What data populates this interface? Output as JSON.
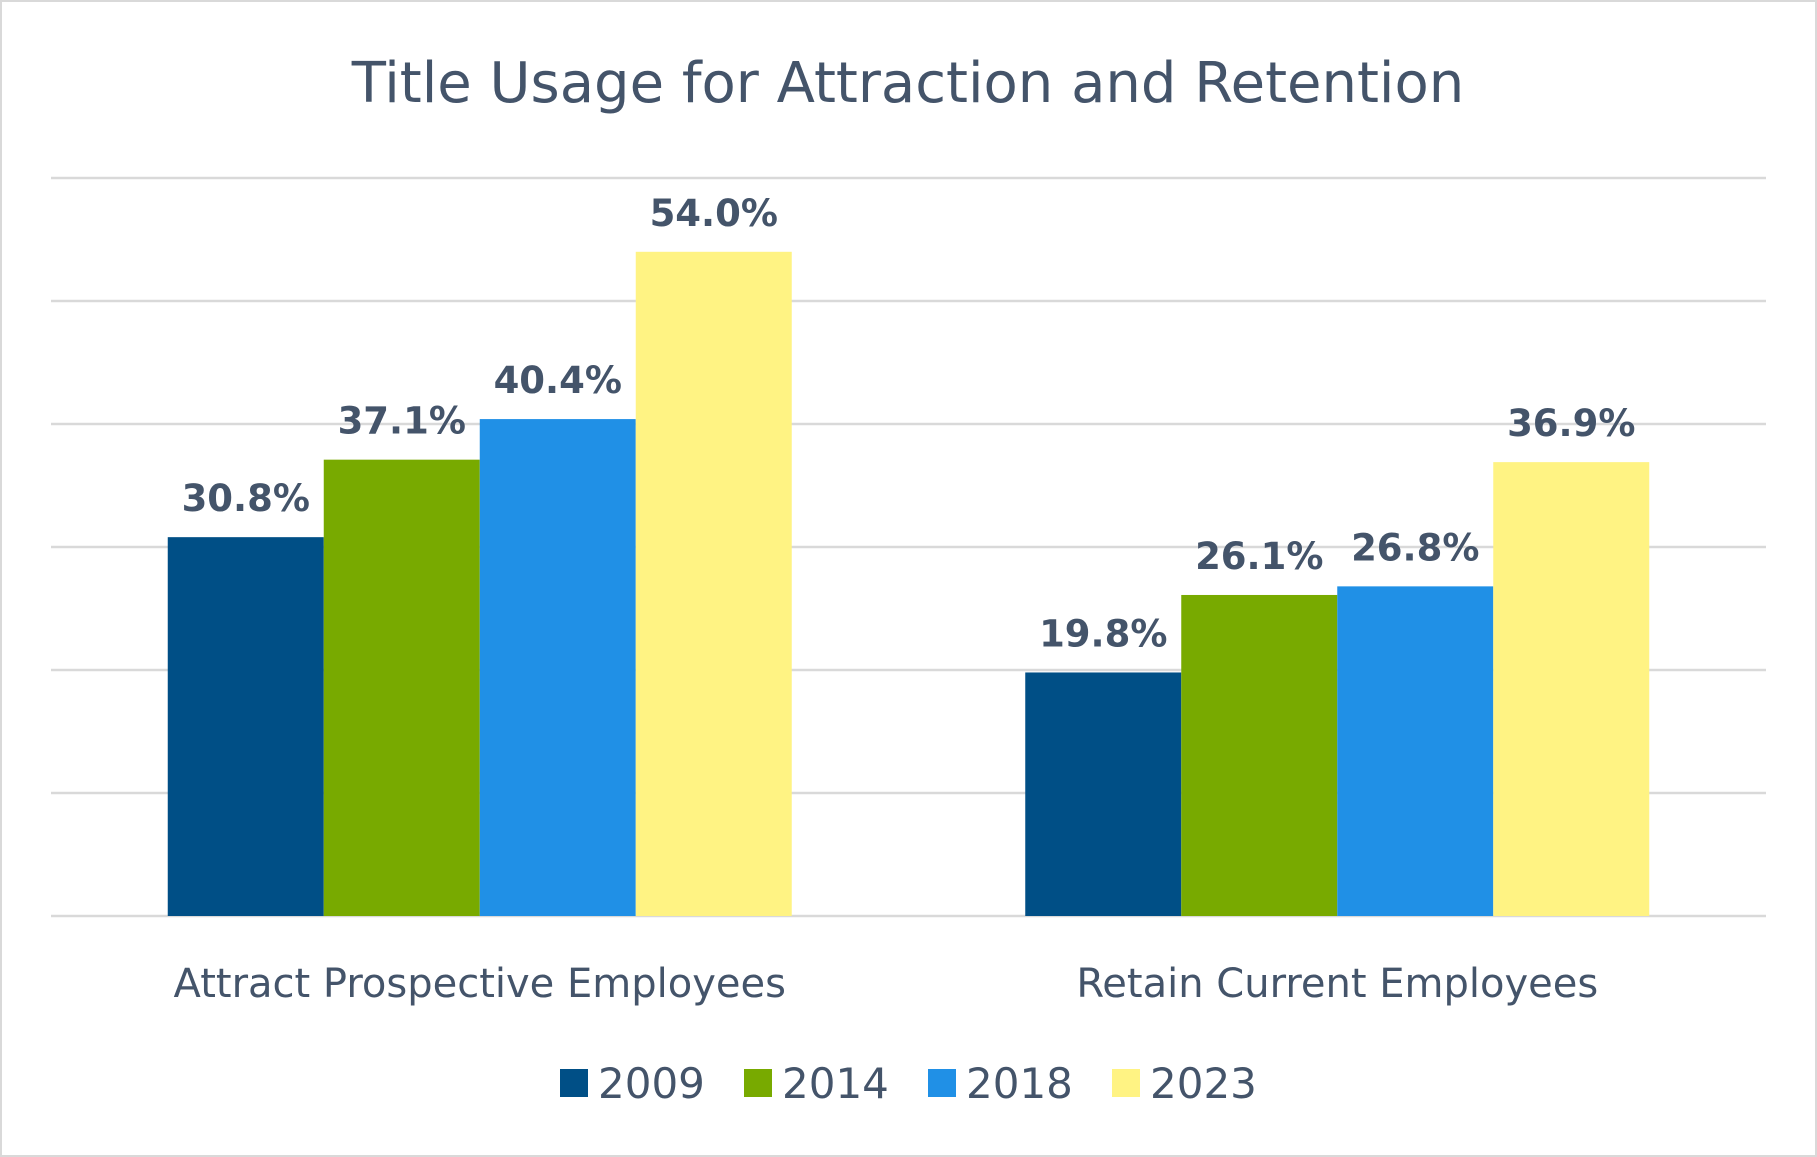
{
  "chart_data": {
    "type": "bar",
    "title": "Title Usage for Attraction and Retention",
    "categories": [
      "Attract Prospective Employees",
      "Retain Current Employees"
    ],
    "series": [
      {
        "name": "2009",
        "values": [
          30.8,
          19.8
        ],
        "labels": [
          "30.8%",
          "19.8%"
        ],
        "color": "#004f86"
      },
      {
        "name": "2014",
        "values": [
          37.1,
          26.1
        ],
        "labels": [
          "37.1%",
          "26.1%"
        ],
        "color": "#78aa00"
      },
      {
        "name": "2018",
        "values": [
          40.4,
          26.8
        ],
        "labels": [
          "40.4%",
          "26.8%"
        ],
        "color": "#2090e6"
      },
      {
        "name": "2023",
        "values": [
          54.0,
          36.9
        ],
        "labels": [
          "54.0%",
          "36.9%"
        ],
        "color": "#fff383"
      }
    ],
    "ylim": [
      0,
      60
    ],
    "y_gridline_step": 10,
    "grid": true,
    "y_axis_labels_shown": false,
    "legend_position": "bottom"
  }
}
